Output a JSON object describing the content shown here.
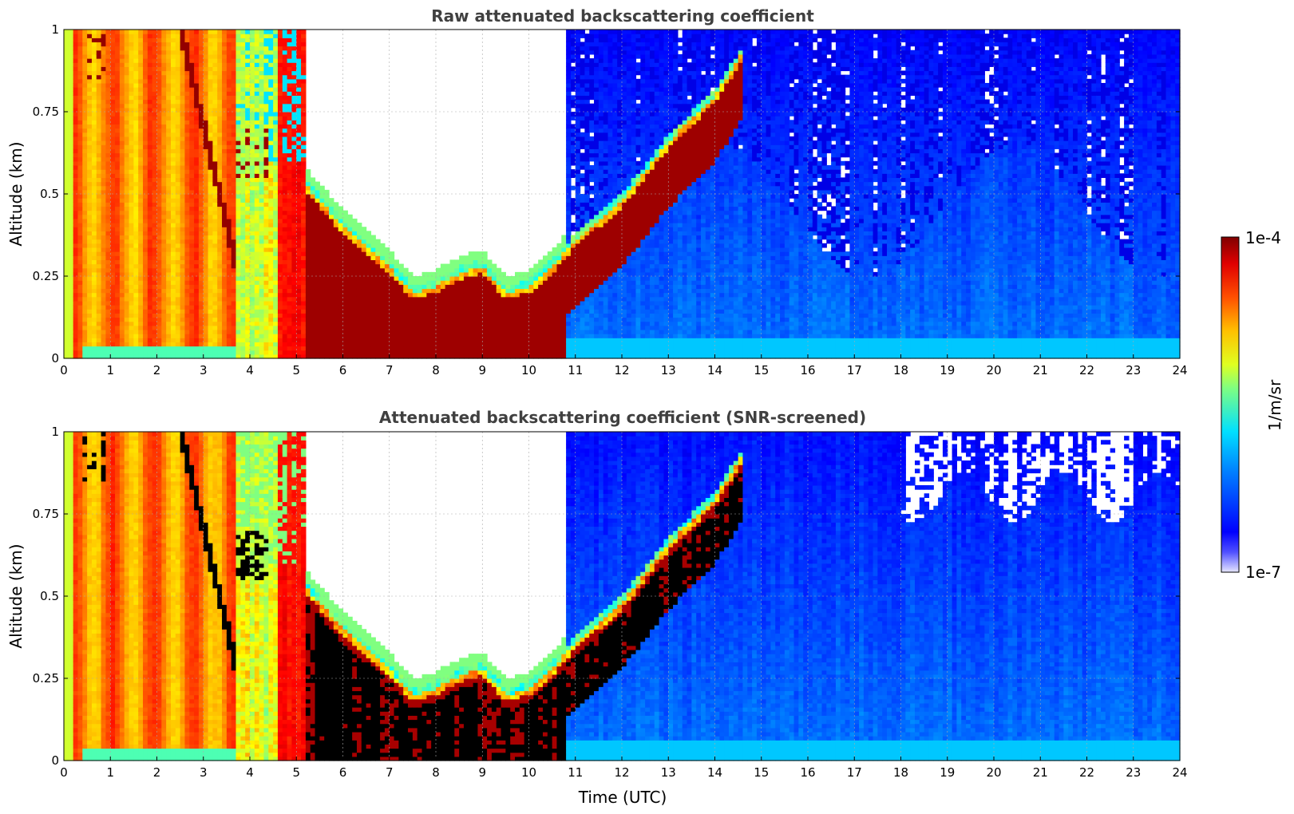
{
  "chart_data": [
    {
      "type": "heatmap",
      "title": "Raw attenuated backscattering coefficient",
      "xlabel": "",
      "ylabel": "Altitude (km)",
      "xlim": [
        0,
        24
      ],
      "ylim": [
        0,
        1
      ],
      "x_ticks": [
        "0",
        "1",
        "2",
        "3",
        "4",
        "5",
        "6",
        "7",
        "8",
        "9",
        "10",
        "11",
        "12",
        "13",
        "14",
        "15",
        "16",
        "17",
        "18",
        "19",
        "20",
        "21",
        "22",
        "23",
        "24"
      ],
      "y_ticks": [
        "0",
        "0.25",
        "0.5",
        "0.75",
        "1"
      ],
      "grid": true,
      "colorscale": "jet",
      "log_scale_range": [
        -7,
        -4
      ],
      "regions": [
        {
          "hours": [
            0,
            3.7
          ],
          "description": "dense aerosol layer, orange–yellow",
          "log10_value": -4.6
        },
        {
          "hours": [
            3.7,
            5.2
          ],
          "description": "mixed layer with cloud patches",
          "log10_value": -4.9
        },
        {
          "hours": [
            5.2,
            10.8
          ],
          "description": "cloud/fog layer, dark red, top descending to ~0.15 km near 8 UTC then rising",
          "log10_value": -4.0
        },
        {
          "hours": [
            10.8,
            14.6
          ],
          "description": "rising dark-red layer top from 0.3 km to 1 km",
          "log10_value": -4.1
        },
        {
          "hours": [
            11,
            24
          ],
          "description": "clear boundary layer, blue",
          "log10_value": -6.3
        }
      ],
      "layer_top_km": {
        "x": [
          5.2,
          6,
          7,
          7.5,
          8,
          8.5,
          9,
          9.5,
          10,
          10.5,
          11,
          12,
          13,
          14,
          14.6
        ],
        "y": [
          0.55,
          0.42,
          0.3,
          0.22,
          0.24,
          0.28,
          0.3,
          0.22,
          0.24,
          0.3,
          0.38,
          0.5,
          0.68,
          0.82,
          0.95
        ]
      }
    },
    {
      "type": "heatmap",
      "title": "Attenuated backscattering coefficient (SNR-screened)",
      "xlabel": "Time (UTC)",
      "ylabel": "Altitude (km)",
      "xlim": [
        0,
        24
      ],
      "ylim": [
        0,
        1
      ],
      "x_ticks": [
        "0",
        "1",
        "2",
        "3",
        "4",
        "5",
        "6",
        "7",
        "8",
        "9",
        "10",
        "11",
        "12",
        "13",
        "14",
        "15",
        "16",
        "17",
        "18",
        "19",
        "20",
        "21",
        "22",
        "23",
        "24"
      ],
      "y_ticks": [
        "0",
        "0.25",
        "0.5",
        "0.75",
        "1"
      ],
      "grid": true,
      "colorscale": "jet",
      "log_scale_range": [
        -7,
        -4
      ],
      "screened": true
    }
  ],
  "colorbar": {
    "label": "1/m/sr",
    "max_label": "1e-4",
    "min_label": "1e-7",
    "colors_bottom_to_top": [
      "#e6e6ff",
      "#0000ff",
      "#00a0ff",
      "#00ffe0",
      "#b0ff40",
      "#ffe000",
      "#ff8000",
      "#ff1000",
      "#800000"
    ]
  }
}
